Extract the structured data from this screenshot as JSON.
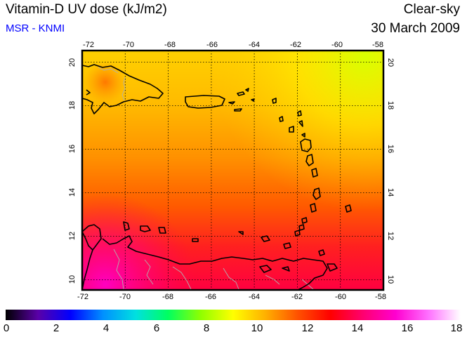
{
  "header": {
    "title": "Vitamin-D UV dose (kJ/m2)",
    "source": "MSR - KNMI",
    "condition": "Clear-sky",
    "date": "30 March 2009"
  },
  "colors": {
    "source_text": "#0000ff",
    "graticule": "#000000",
    "coast": "#000000",
    "border": "#b0b0b0"
  },
  "map": {
    "lon_range": [
      -72,
      -58
    ],
    "lat_range": [
      9.5,
      20.5
    ],
    "lon_ticks": [
      "-72",
      "-70",
      "-68",
      "-66",
      "-64",
      "-62",
      "-60",
      "-58"
    ],
    "lat_ticks": [
      "10",
      "12",
      "14",
      "16",
      "18",
      "20"
    ]
  },
  "colorbar": {
    "min": 0,
    "max": 18,
    "labels": [
      "0",
      "2",
      "4",
      "6",
      "8",
      "10",
      "12",
      "14",
      "16",
      "18"
    ],
    "stops": [
      "#000000",
      "#5a00a8",
      "#0000ff",
      "#0090ff",
      "#00e0e0",
      "#00ff60",
      "#90ff00",
      "#ffff00",
      "#ffb000",
      "#ff5000",
      "#ff0000",
      "#ff0070",
      "#ff00d0",
      "#ff70ff",
      "#ffffff"
    ]
  }
}
